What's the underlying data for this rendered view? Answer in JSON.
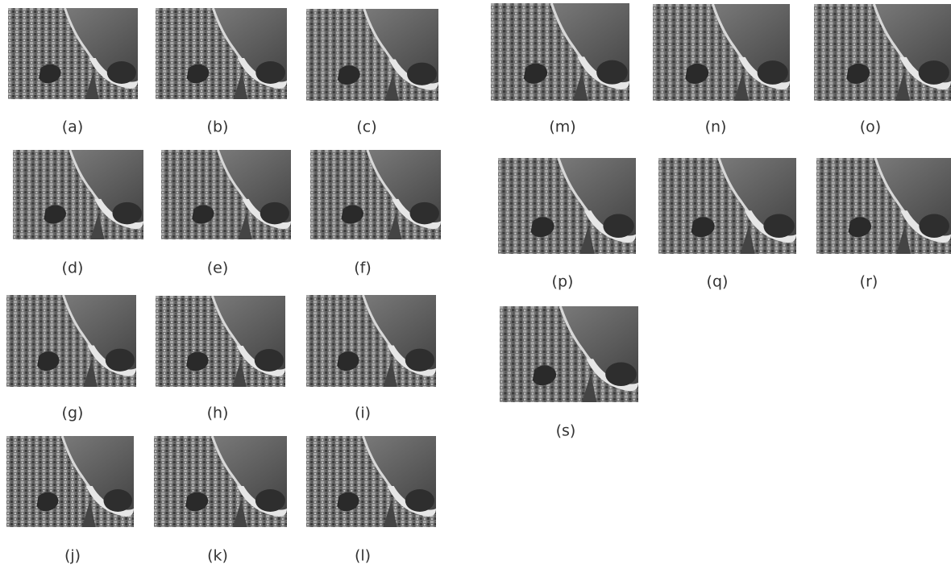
{
  "panels": [
    {
      "label": "(a)"
    },
    {
      "label": "(b)"
    },
    {
      "label": "(c)"
    },
    {
      "label": "(d)"
    },
    {
      "label": "(e)"
    },
    {
      "label": "(f)"
    },
    {
      "label": "(g)"
    },
    {
      "label": "(h)"
    },
    {
      "label": "(i)"
    },
    {
      "label": "(j)"
    },
    {
      "label": "(k)"
    },
    {
      "label": "(l)"
    },
    {
      "label": "(m)"
    },
    {
      "label": "(n)"
    },
    {
      "label": "(o)"
    },
    {
      "label": "(p)"
    },
    {
      "label": "(q)"
    },
    {
      "label": "(r)"
    },
    {
      "label": "(s)"
    }
  ]
}
